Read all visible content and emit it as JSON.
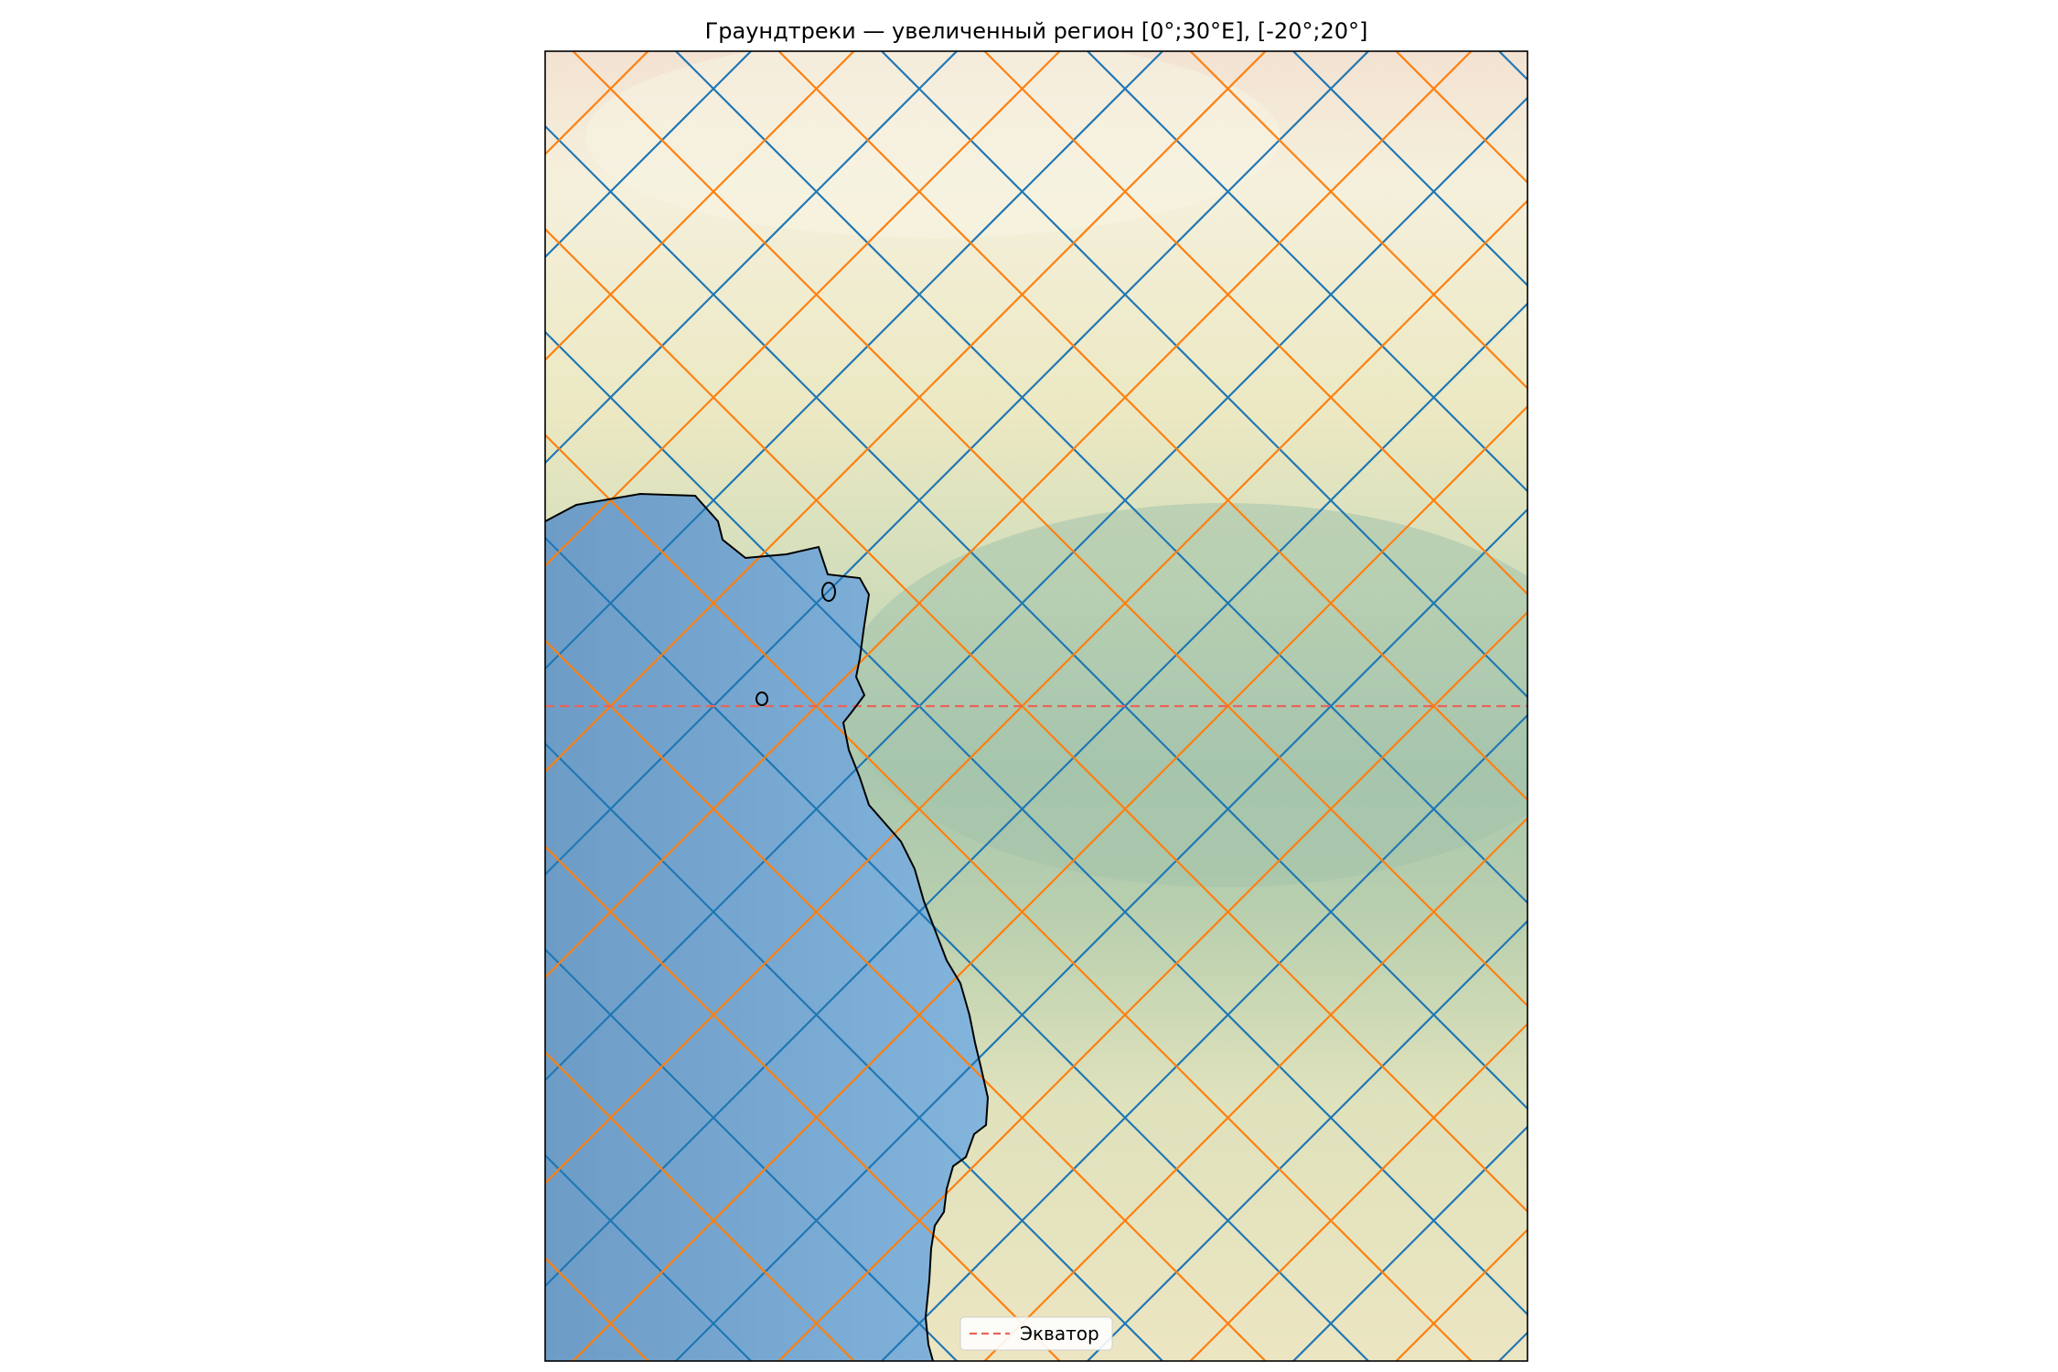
{
  "chart_data": {
    "type": "map",
    "title": "Граундтреки — увеличенный регион [0°;30°E], [-20°;20°]",
    "xlim": [
      0,
      30
    ],
    "ylim": [
      -20,
      20
    ],
    "grid": false,
    "legend": {
      "placement": "lower-center",
      "entries": [
        {
          "label": "Экватор",
          "color": "#e8645a",
          "style": "dashed"
        }
      ]
    },
    "equator_lat": 0,
    "track_series": [
      {
        "color": "#1f77b4",
        "slope": "ascending-and-descending"
      },
      {
        "color": "#ff7f0e",
        "slope": "ascending-and-descending"
      }
    ],
    "colors": {
      "ocean": "#7aa9d2",
      "coastline": "#000000",
      "desert": "#f3ead0",
      "savanna": "#e6e6bc",
      "forest": "#a9c7ae",
      "track_blue": "#1f77b4",
      "track_orange": "#ff7f0e",
      "equator": "#e8645a"
    }
  }
}
